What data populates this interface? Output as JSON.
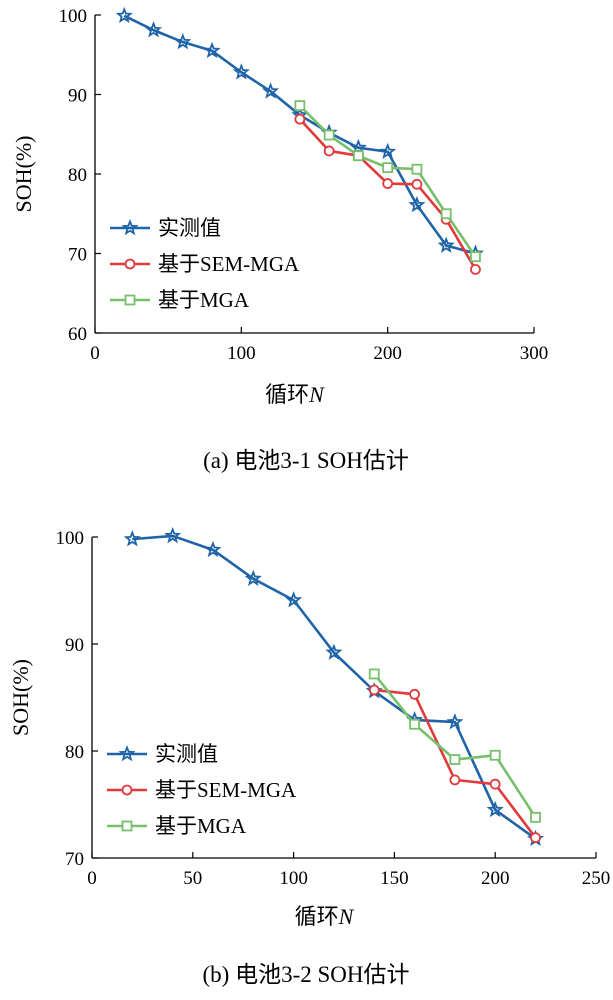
{
  "chart_data": [
    {
      "type": "line",
      "x": [
        20,
        40,
        60,
        80,
        100,
        120,
        140,
        160,
        180,
        200,
        220,
        240,
        260
      ],
      "xlim": [
        0,
        300
      ],
      "ylim": [
        60,
        100
      ],
      "xticks": [
        0,
        100,
        200,
        300
      ],
      "yticks": [
        60,
        70,
        80,
        90,
        100
      ],
      "xlabel_main": "循环",
      "xlabel_var": "N",
      "ylabel": "SOH(%)",
      "caption": "(a) 电池3-1 SOH估计",
      "legend_position": "lower-left",
      "grid": false,
      "series": [
        {
          "name": "实测值",
          "color": "#1f64a8",
          "marker": "star",
          "x": [
            20,
            40,
            60,
            80,
            100,
            120,
            140,
            160,
            180,
            200,
            220,
            240,
            260
          ],
          "values": [
            99.9,
            98.1,
            96.6,
            95.5,
            92.8,
            90.4,
            87.4,
            85.2,
            83.3,
            82.8,
            76.1,
            71.0,
            70.0
          ]
        },
        {
          "name": "基于SEM-MGA",
          "color": "#e03a3c",
          "marker": "circle",
          "x": [
            140,
            160,
            180,
            200,
            220,
            240,
            260
          ],
          "values": [
            86.9,
            82.9,
            82.3,
            78.8,
            78.7,
            74.3,
            68.0
          ]
        },
        {
          "name": "基于MGA",
          "color": "#77bf6b",
          "marker": "square",
          "x": [
            140,
            160,
            180,
            200,
            220,
            240,
            260
          ],
          "values": [
            88.6,
            84.9,
            82.3,
            80.8,
            80.6,
            75.0,
            69.6
          ]
        }
      ]
    },
    {
      "type": "line",
      "x": [
        20,
        40,
        60,
        80,
        100,
        120,
        140,
        160,
        180,
        200,
        220
      ],
      "xlim": [
        0,
        250
      ],
      "ylim": [
        70,
        100
      ],
      "xticks": [
        0,
        50,
        100,
        150,
        200,
        250
      ],
      "yticks": [
        70,
        80,
        90,
        100
      ],
      "xlabel_main": "循环",
      "xlabel_var": "N",
      "ylabel": "SOH(%)",
      "caption": "(b) 电池3-2 SOH估计",
      "legend_position": "lower-left",
      "grid": false,
      "series": [
        {
          "name": "实测值",
          "color": "#1f64a8",
          "marker": "star",
          "x": [
            20,
            40,
            60,
            80,
            100,
            120,
            140,
            160,
            180,
            200,
            220
          ],
          "values": [
            99.8,
            100.1,
            98.8,
            96.1,
            94.1,
            89.2,
            85.6,
            82.9,
            82.7,
            74.5,
            71.8
          ]
        },
        {
          "name": "基于SEM-MGA",
          "color": "#e03a3c",
          "marker": "circle",
          "x": [
            140,
            160,
            180,
            200,
            220
          ],
          "values": [
            85.7,
            85.3,
            77.3,
            76.9,
            71.9
          ]
        },
        {
          "name": "基于MGA",
          "color": "#77bf6b",
          "marker": "square",
          "x": [
            140,
            160,
            180,
            200,
            220
          ],
          "values": [
            87.2,
            82.5,
            79.2,
            79.6,
            73.8
          ]
        }
      ]
    }
  ]
}
